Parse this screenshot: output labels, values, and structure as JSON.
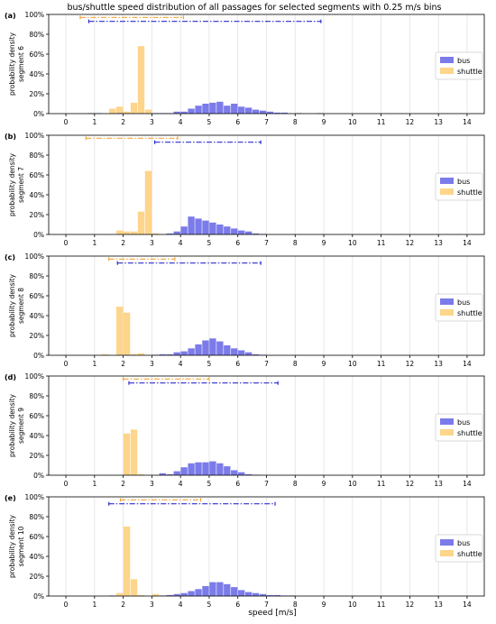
{
  "title": "bus/shuttle speed distribution of all passages for selected segments with 0.25 m/s bins",
  "xlabel": "speed [m/s]",
  "x_ticks": [
    "0",
    "1",
    "2",
    "3",
    "4",
    "5",
    "6",
    "7",
    "8",
    "9",
    "10",
    "11",
    "12",
    "13",
    "14"
  ],
  "y_ticks": [
    "0%",
    "20%",
    "40%",
    "60%",
    "80%",
    "100%"
  ],
  "legend": [
    "bus",
    "shuttle"
  ],
  "colors": {
    "bus": "#7b7bea",
    "shuttle": "#fdd58b",
    "bus_range": "#2c2cc9",
    "shuttle_range": "#f0a43a",
    "grid": "#dddddd"
  },
  "chart_data": [
    {
      "type": "bar",
      "panel_label": "(a)",
      "ylabel": "probability density\nsegment 6",
      "xlim": [
        -0.6,
        14.6
      ],
      "ylim": [
        0,
        1
      ],
      "bin_width": 0.25,
      "legend_position": "right",
      "grid": "vertical",
      "series": [
        {
          "name": "shuttle",
          "bins": [
            [
              1.5,
              0.05
            ],
            [
              1.75,
              0.07
            ],
            [
              2.0,
              0.02
            ],
            [
              2.25,
              0.11
            ],
            [
              2.5,
              0.68
            ],
            [
              2.75,
              0.04
            ]
          ]
        },
        {
          "name": "bus",
          "bins": [
            [
              0.75,
              0.005
            ],
            [
              1.0,
              0.005
            ],
            [
              1.75,
              0.005
            ],
            [
              3.0,
              0.005
            ],
            [
              3.25,
              0.005
            ],
            [
              3.5,
              0.005
            ],
            [
              3.75,
              0.02
            ],
            [
              4.0,
              0.02
            ],
            [
              4.25,
              0.05
            ],
            [
              4.5,
              0.08
            ],
            [
              4.75,
              0.1
            ],
            [
              5.0,
              0.11
            ],
            [
              5.25,
              0.12
            ],
            [
              5.5,
              0.08
            ],
            [
              5.75,
              0.1
            ],
            [
              6.0,
              0.07
            ],
            [
              6.25,
              0.06
            ],
            [
              6.5,
              0.04
            ],
            [
              6.75,
              0.03
            ],
            [
              7.0,
              0.02
            ],
            [
              7.25,
              0.01
            ],
            [
              7.5,
              0.01
            ],
            [
              8.0,
              0.005
            ],
            [
              8.75,
              0.005
            ]
          ]
        }
      ],
      "ranges": [
        {
          "name": "shuttle",
          "y": 0.97,
          "x": [
            0.5,
            4.1
          ]
        },
        {
          "name": "bus",
          "y": 0.93,
          "x": [
            0.8,
            8.9
          ]
        }
      ]
    },
    {
      "type": "bar",
      "panel_label": "(b)",
      "ylabel": "probability density\nsegment 7",
      "xlim": [
        -0.6,
        14.6
      ],
      "ylim": [
        0,
        1
      ],
      "bin_width": 0.25,
      "legend_position": "right",
      "grid": "vertical",
      "series": [
        {
          "name": "shuttle",
          "bins": [
            [
              1.75,
              0.04
            ],
            [
              2.0,
              0.03
            ],
            [
              2.25,
              0.03
            ],
            [
              2.5,
              0.23
            ],
            [
              2.75,
              0.64
            ],
            [
              3.0,
              0.01
            ]
          ]
        },
        {
          "name": "bus",
          "bins": [
            [
              3.5,
              0.01
            ],
            [
              3.75,
              0.03
            ],
            [
              4.0,
              0.08
            ],
            [
              4.25,
              0.18
            ],
            [
              4.5,
              0.16
            ],
            [
              4.75,
              0.14
            ],
            [
              5.0,
              0.12
            ],
            [
              5.25,
              0.1
            ],
            [
              5.5,
              0.08
            ],
            [
              5.75,
              0.06
            ],
            [
              6.0,
              0.04
            ],
            [
              6.25,
              0.03
            ],
            [
              6.5,
              0.01
            ],
            [
              6.75,
              0.005
            ]
          ]
        }
      ],
      "ranges": [
        {
          "name": "shuttle",
          "y": 0.97,
          "x": [
            0.7,
            3.9
          ]
        },
        {
          "name": "bus",
          "y": 0.93,
          "x": [
            3.1,
            6.8
          ]
        }
      ]
    },
    {
      "type": "bar",
      "panel_label": "(c)",
      "ylabel": "probability density\nsegment 8",
      "xlim": [
        -0.6,
        14.6
      ],
      "ylim": [
        0,
        1
      ],
      "bin_width": 0.25,
      "legend_position": "right",
      "grid": "vertical",
      "series": [
        {
          "name": "shuttle",
          "bins": [
            [
              1.25,
              0.01
            ],
            [
              1.75,
              0.49
            ],
            [
              2.0,
              0.43
            ],
            [
              2.25,
              0.01
            ],
            [
              2.5,
              0.02
            ]
          ]
        },
        {
          "name": "bus",
          "bins": [
            [
              3.0,
              0.005
            ],
            [
              3.25,
              0.01
            ],
            [
              3.5,
              0.01
            ],
            [
              3.75,
              0.03
            ],
            [
              4.0,
              0.04
            ],
            [
              4.25,
              0.07
            ],
            [
              4.5,
              0.11
            ],
            [
              4.75,
              0.15
            ],
            [
              5.0,
              0.17
            ],
            [
              5.25,
              0.14
            ],
            [
              5.5,
              0.1
            ],
            [
              5.75,
              0.07
            ],
            [
              6.0,
              0.05
            ],
            [
              6.25,
              0.03
            ],
            [
              6.5,
              0.01
            ],
            [
              6.75,
              0.005
            ]
          ]
        }
      ],
      "ranges": [
        {
          "name": "shuttle",
          "y": 0.97,
          "x": [
            1.5,
            3.8
          ]
        },
        {
          "name": "bus",
          "y": 0.93,
          "x": [
            1.8,
            6.8
          ]
        }
      ]
    },
    {
      "type": "bar",
      "panel_label": "(d)",
      "ylabel": "probability density\nsegment 9",
      "xlim": [
        -0.6,
        14.6
      ],
      "ylim": [
        0,
        1
      ],
      "bin_width": 0.25,
      "legend_position": "right",
      "grid": "vertical",
      "series": [
        {
          "name": "shuttle",
          "bins": [
            [
              2.0,
              0.42
            ],
            [
              2.25,
              0.46
            ],
            [
              2.5,
              0.01
            ]
          ]
        },
        {
          "name": "bus",
          "bins": [
            [
              3.25,
              0.02
            ],
            [
              3.5,
              0.01
            ],
            [
              3.75,
              0.04
            ],
            [
              4.0,
              0.08
            ],
            [
              4.25,
              0.12
            ],
            [
              4.5,
              0.13
            ],
            [
              4.75,
              0.13
            ],
            [
              5.0,
              0.14
            ],
            [
              5.25,
              0.12
            ],
            [
              5.5,
              0.09
            ],
            [
              5.75,
              0.05
            ],
            [
              6.0,
              0.03
            ],
            [
              6.25,
              0.01
            ],
            [
              6.5,
              0.005
            ]
          ]
        }
      ],
      "ranges": [
        {
          "name": "shuttle",
          "y": 0.97,
          "x": [
            2.0,
            5.0
          ]
        },
        {
          "name": "bus",
          "y": 0.93,
          "x": [
            2.2,
            7.4
          ]
        }
      ]
    },
    {
      "type": "bar",
      "panel_label": "(e)",
      "ylabel": "probability density\nsegment 10",
      "xlim": [
        -0.6,
        14.6
      ],
      "ylim": [
        0,
        1
      ],
      "bin_width": 0.25,
      "legend_position": "right",
      "grid": "vertical",
      "series": [
        {
          "name": "shuttle",
          "bins": [
            [
              1.75,
              0.03
            ],
            [
              2.0,
              0.7
            ],
            [
              2.25,
              0.17
            ],
            [
              2.5,
              0.01
            ],
            [
              3.0,
              0.02
            ],
            [
              3.5,
              0.01
            ],
            [
              3.75,
              0.02
            ],
            [
              4.0,
              0.01
            ]
          ]
        },
        {
          "name": "bus",
          "bins": [
            [
              1.5,
              0.005
            ],
            [
              3.25,
              0.005
            ],
            [
              3.5,
              0.01
            ],
            [
              3.75,
              0.02
            ],
            [
              4.0,
              0.03
            ],
            [
              4.25,
              0.05
            ],
            [
              4.5,
              0.07
            ],
            [
              4.75,
              0.1
            ],
            [
              5.0,
              0.14
            ],
            [
              5.25,
              0.14
            ],
            [
              5.5,
              0.12
            ],
            [
              5.75,
              0.09
            ],
            [
              6.0,
              0.06
            ],
            [
              6.25,
              0.04
            ],
            [
              6.5,
              0.03
            ],
            [
              6.75,
              0.02
            ],
            [
              7.0,
              0.01
            ],
            [
              7.25,
              0.01
            ],
            [
              7.5,
              0.005
            ],
            [
              7.75,
              0.005
            ]
          ]
        }
      ],
      "ranges": [
        {
          "name": "shuttle",
          "y": 0.97,
          "x": [
            1.9,
            4.7
          ]
        },
        {
          "name": "bus",
          "y": 0.93,
          "x": [
            1.5,
            7.3
          ]
        }
      ]
    }
  ]
}
